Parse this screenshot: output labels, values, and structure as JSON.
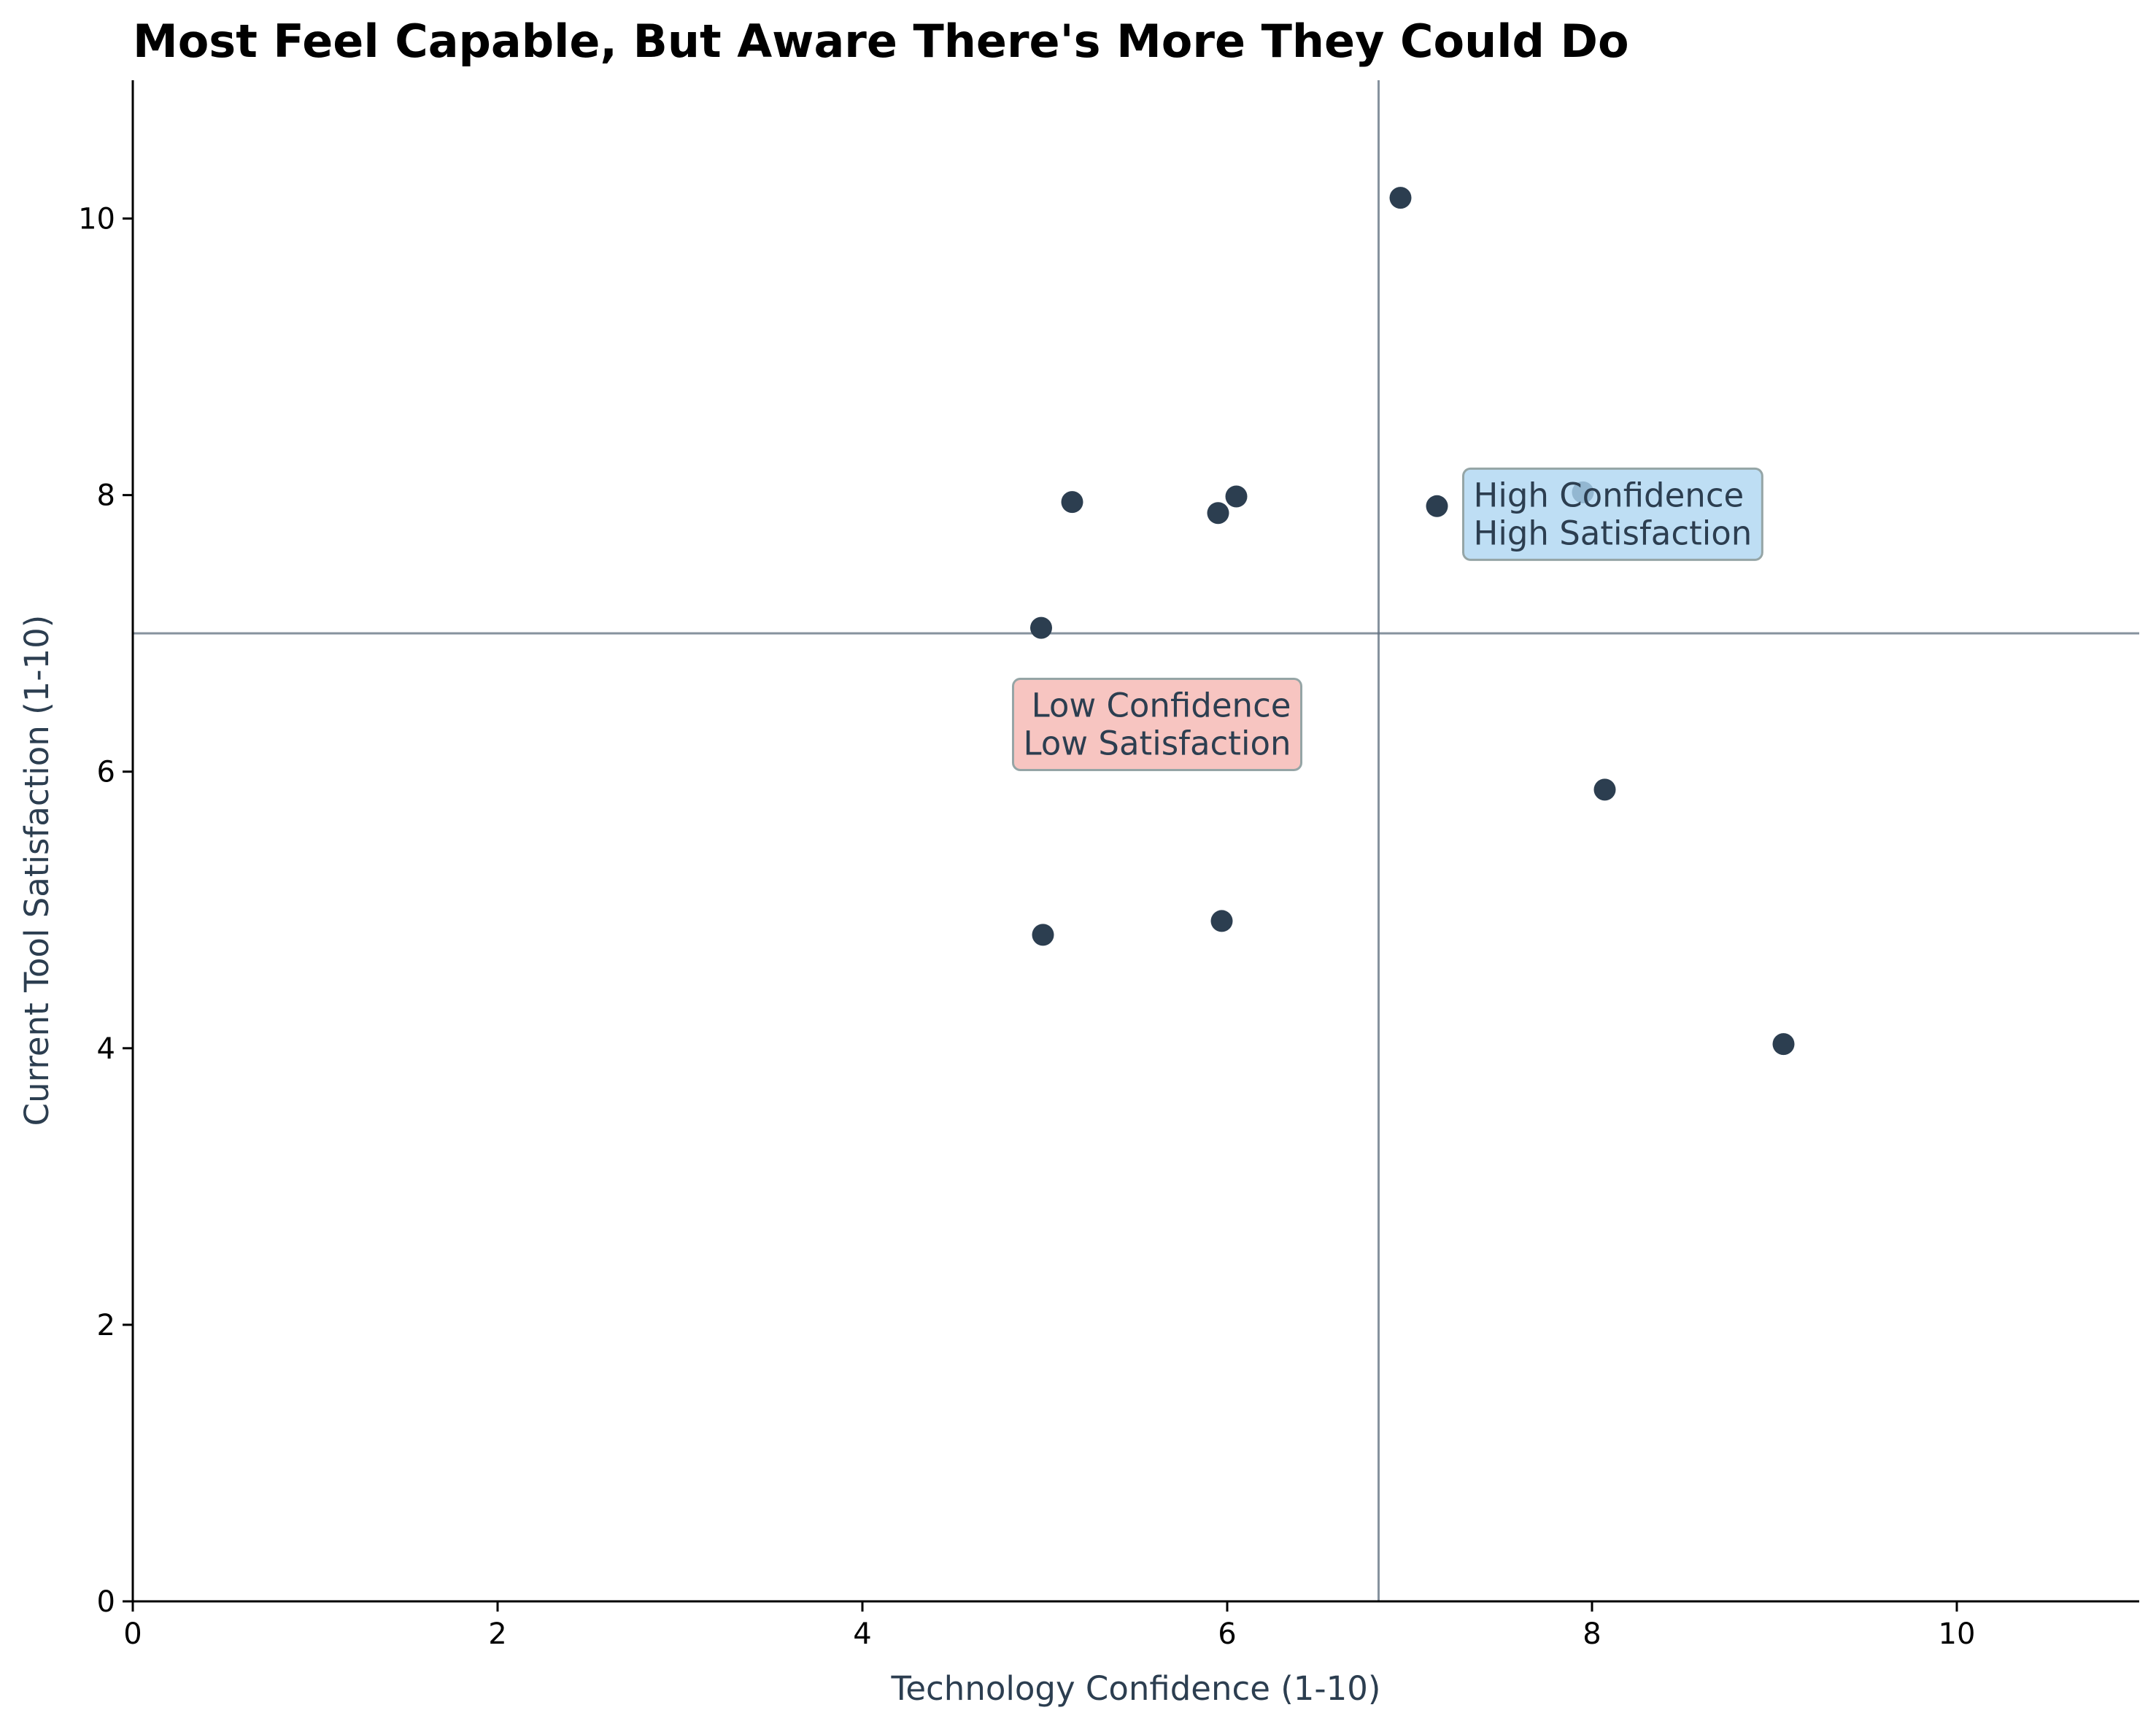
{
  "chart_data": {
    "type": "scatter",
    "title": "Most Feel Capable, But Aware There's More They Could Do",
    "xlabel": "Technology Confidence (1-10)",
    "ylabel": "Current Tool Satisfaction (1-10)",
    "xlim": [
      0,
      11
    ],
    "ylim": [
      0,
      11
    ],
    "xticks": [
      0,
      2,
      4,
      6,
      8,
      10
    ],
    "yticks": [
      0,
      2,
      4,
      6,
      8,
      10
    ],
    "grid": false,
    "reference_lines": {
      "x": 6.83,
      "y": 7.0
    },
    "points": [
      {
        "x": 6.95,
        "y": 10.15
      },
      {
        "x": 7.95,
        "y": 8.02
      },
      {
        "x": 7.15,
        "y": 7.92
      },
      {
        "x": 5.15,
        "y": 7.95
      },
      {
        "x": 6.05,
        "y": 7.99
      },
      {
        "x": 5.95,
        "y": 7.87
      },
      {
        "x": 4.98,
        "y": 7.04
      },
      {
        "x": 8.07,
        "y": 5.87
      },
      {
        "x": 5.97,
        "y": 4.92
      },
      {
        "x": 4.99,
        "y": 4.82
      },
      {
        "x": 9.05,
        "y": 4.03
      }
    ],
    "annotations": [
      {
        "lines": [
          "High Confidence",
          "High Satisfaction"
        ],
        "x": 7.35,
        "y": 7.78,
        "align": "left",
        "fill": "#AED6F1"
      },
      {
        "lines": [
          "Low Confidence",
          "Low Satisfaction"
        ],
        "x": 6.35,
        "y": 6.26,
        "align": "right",
        "fill": "#F5B7B1"
      }
    ],
    "colors": {
      "points": "#2C3E50",
      "reference_line": "#5D6D7E",
      "axis_label": "#2C3E50",
      "annotation_text": "#2C3E50",
      "annotation_border": "#95A5A6"
    }
  }
}
